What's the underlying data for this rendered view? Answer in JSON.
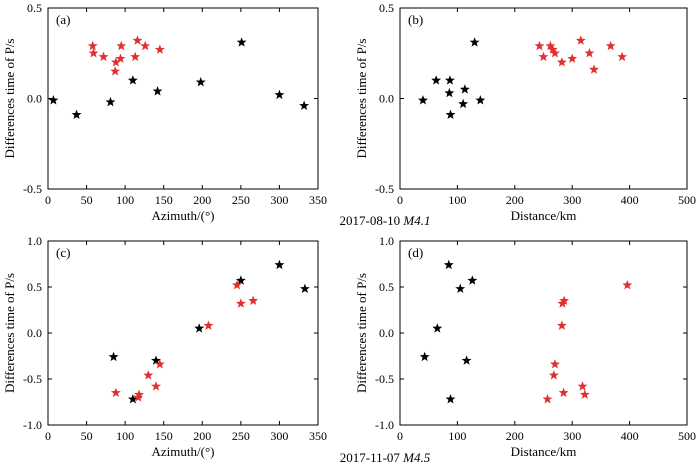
{
  "colors": {
    "black_star": "#000000",
    "red_star": "#e03030"
  },
  "captions": [
    {
      "date": "2017-08-10",
      "mag": "M4.1"
    },
    {
      "date": "2017-11-07",
      "mag": "M4.5"
    }
  ],
  "chart_data": [
    {
      "type": "scatter",
      "panel_label": "(a)",
      "xlabel": "Azimuth/(°)",
      "ylabel": "Differences time of P/s",
      "xlim": [
        0,
        350
      ],
      "ylim": [
        -0.5,
        0.5
      ],
      "xticks": [
        0,
        50,
        100,
        150,
        200,
        250,
        300,
        350
      ],
      "yticks": [
        -0.5,
        0,
        0.5
      ],
      "xtick_labels": [
        "0",
        "50",
        "100",
        "150",
        "200",
        "250",
        "300",
        "350"
      ],
      "ytick_labels": [
        "-0.5",
        "0.0",
        "0.5"
      ],
      "series": [
        {
          "name": "black",
          "color": "#000000",
          "points": [
            [
              7,
              -0.01
            ],
            [
              37,
              -0.09
            ],
            [
              81,
              -0.02
            ],
            [
              110,
              0.1
            ],
            [
              142,
              0.04
            ],
            [
              198,
              0.09
            ],
            [
              251,
              0.31
            ],
            [
              300,
              0.02
            ],
            [
              332,
              -0.04
            ]
          ]
        },
        {
          "name": "red",
          "color": "#e03030",
          "points": [
            [
              58,
              0.29
            ],
            [
              59,
              0.25
            ],
            [
              72,
              0.23
            ],
            [
              87,
              0.15
            ],
            [
              88,
              0.2
            ],
            [
              94,
              0.22
            ],
            [
              95,
              0.29
            ],
            [
              113,
              0.23
            ],
            [
              116,
              0.32
            ],
            [
              126,
              0.29
            ],
            [
              145,
              0.27
            ]
          ]
        }
      ]
    },
    {
      "type": "scatter",
      "panel_label": "(b)",
      "xlabel": "Distance/km",
      "ylabel": "Differences time of P/s",
      "xlim": [
        0,
        500
      ],
      "ylim": [
        -0.5,
        0.5
      ],
      "xticks": [
        0,
        100,
        200,
        300,
        400,
        500
      ],
      "yticks": [
        -0.5,
        0,
        0.5
      ],
      "xtick_labels": [
        "0",
        "100",
        "200",
        "300",
        "400",
        "500"
      ],
      "ytick_labels": [
        "-0.5",
        "0.0",
        "0.5"
      ],
      "series": [
        {
          "name": "black",
          "color": "#000000",
          "points": [
            [
              40,
              -0.01
            ],
            [
              63,
              0.1
            ],
            [
              86,
              0.03
            ],
            [
              87,
              0.1
            ],
            [
              88,
              -0.09
            ],
            [
              110,
              -0.03
            ],
            [
              113,
              0.05
            ],
            [
              130,
              0.31
            ],
            [
              140,
              -0.01
            ]
          ]
        },
        {
          "name": "red",
          "color": "#e03030",
          "points": [
            [
              243,
              0.29
            ],
            [
              250,
              0.23
            ],
            [
              262,
              0.29
            ],
            [
              266,
              0.27
            ],
            [
              270,
              0.25
            ],
            [
              282,
              0.2
            ],
            [
              300,
              0.22
            ],
            [
              315,
              0.32
            ],
            [
              330,
              0.25
            ],
            [
              338,
              0.16
            ],
            [
              367,
              0.29
            ],
            [
              387,
              0.23
            ]
          ]
        }
      ]
    },
    {
      "type": "scatter",
      "panel_label": "(c)",
      "xlabel": "Azimuth/(°)",
      "ylabel": "Differences time of P/s",
      "xlim": [
        0,
        350
      ],
      "ylim": [
        -1.0,
        1.0
      ],
      "xticks": [
        0,
        50,
        100,
        150,
        200,
        250,
        300,
        350
      ],
      "yticks": [
        -1.0,
        -0.5,
        0,
        0.5,
        1.0
      ],
      "xtick_labels": [
        "0",
        "50",
        "100",
        "150",
        "200",
        "250",
        "300",
        "350"
      ],
      "ytick_labels": [
        "-1.0",
        "-0.5",
        "0.0",
        "0.5",
        "1.0"
      ],
      "series": [
        {
          "name": "black",
          "color": "#000000",
          "points": [
            [
              85,
              -0.26
            ],
            [
              110,
              -0.72
            ],
            [
              140,
              -0.3
            ],
            [
              196,
              0.05
            ],
            [
              250,
              0.57
            ],
            [
              300,
              0.74
            ],
            [
              333,
              0.48
            ]
          ]
        },
        {
          "name": "red",
          "color": "#e03030",
          "points": [
            [
              88,
              -0.65
            ],
            [
              117,
              -0.7
            ],
            [
              118,
              -0.67
            ],
            [
              130,
              -0.46
            ],
            [
              140,
              -0.58
            ],
            [
              145,
              -0.34
            ],
            [
              208,
              0.08
            ],
            [
              245,
              0.52
            ],
            [
              250,
              0.32
            ],
            [
              266,
              0.35
            ]
          ]
        }
      ]
    },
    {
      "type": "scatter",
      "panel_label": "(d)",
      "xlabel": "Distance/km",
      "ylabel": "Differences time of P/s",
      "xlim": [
        0,
        500
      ],
      "ylim": [
        -1.0,
        1.0
      ],
      "xticks": [
        0,
        100,
        200,
        300,
        400,
        500
      ],
      "yticks": [
        -1.0,
        -0.5,
        0,
        0.5,
        1.0
      ],
      "xtick_labels": [
        "0",
        "100",
        "200",
        "300",
        "400",
        "500"
      ],
      "ytick_labels": [
        "-1.0",
        "-0.5",
        "0.0",
        "0.5",
        "1.0"
      ],
      "series": [
        {
          "name": "black",
          "color": "#000000",
          "points": [
            [
              43,
              -0.26
            ],
            [
              65,
              0.05
            ],
            [
              85,
              0.74
            ],
            [
              88,
              -0.72
            ],
            [
              105,
              0.48
            ],
            [
              116,
              -0.3
            ],
            [
              126,
              0.57
            ]
          ]
        },
        {
          "name": "red",
          "color": "#e03030",
          "points": [
            [
              257,
              -0.72
            ],
            [
              268,
              -0.46
            ],
            [
              270,
              -0.34
            ],
            [
              282,
              0.08
            ],
            [
              283,
              0.32
            ],
            [
              286,
              0.35
            ],
            [
              285,
              -0.65
            ],
            [
              318,
              -0.58
            ],
            [
              322,
              -0.67
            ],
            [
              396,
              0.52
            ]
          ]
        }
      ]
    }
  ]
}
